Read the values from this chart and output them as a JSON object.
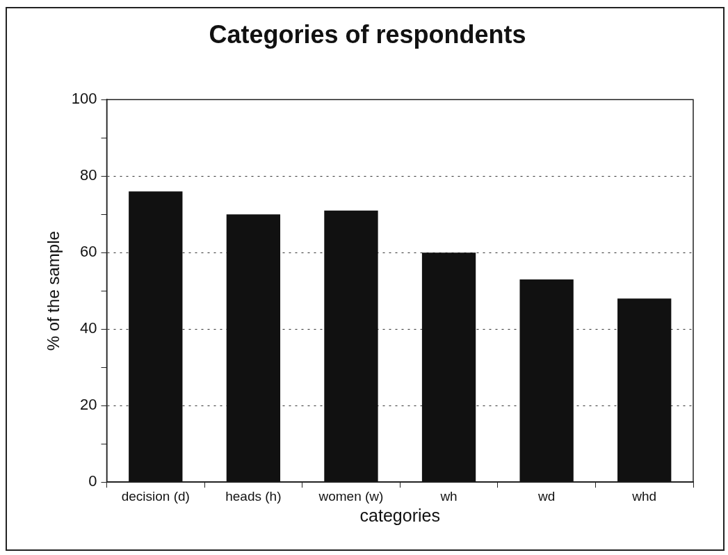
{
  "chart_data": {
    "type": "bar",
    "title": "Categories of respondents",
    "xlabel": "categories",
    "ylabel": "% of the sample",
    "categories": [
      "decision (d)",
      "heads (h)",
      "women (w)",
      "wh",
      "wd",
      "whd"
    ],
    "values": [
      76,
      70,
      71,
      60,
      53,
      48
    ],
    "color": "#111111",
    "ylim": [
      0,
      100
    ],
    "yticks": [
      0,
      {
        "value": 10,
        "label": null
      },
      20,
      {
        "value": 30,
        "label": null
      },
      40,
      {
        "value": 50,
        "label": null
      },
      60,
      {
        "value": 70,
        "label": null
      },
      80,
      {
        "value": 90,
        "label": null
      },
      100
    ],
    "grid": "y",
    "legend": false
  }
}
